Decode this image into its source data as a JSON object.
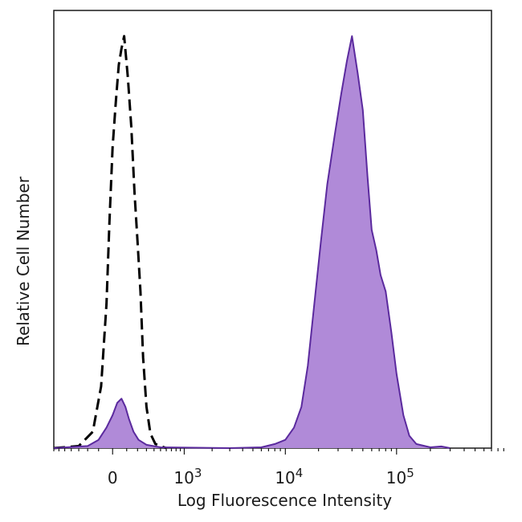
{
  "chart_data": {
    "type": "area",
    "title": "",
    "xlabel": "Log Fluorescence Intensity",
    "ylabel": "Relative Cell Number",
    "x_scale": "biexponential",
    "xlim": [
      -700,
      700000
    ],
    "ylim": [
      0,
      1
    ],
    "x_ticks": [
      {
        "value": 0,
        "base": "0",
        "exp": ""
      },
      {
        "value": 1000,
        "base": "10",
        "exp": "3"
      },
      {
        "value": 10000,
        "base": "10",
        "exp": "4"
      },
      {
        "value": 100000,
        "base": "10",
        "exp": "5"
      }
    ],
    "grid": false,
    "legend": "none",
    "series": [
      {
        "style": "dashed-outline",
        "color": "#000000",
        "points": [
          [
            -700,
            0.0
          ],
          [
            -300,
            0.005
          ],
          [
            -150,
            0.04
          ],
          [
            -80,
            0.15
          ],
          [
            -40,
            0.35
          ],
          [
            -20,
            0.55
          ],
          [
            0,
            0.73
          ],
          [
            20,
            0.84
          ],
          [
            40,
            0.93
          ],
          [
            60,
            0.97
          ],
          [
            80,
            1.0
          ],
          [
            110,
            0.9
          ],
          [
            140,
            0.78
          ],
          [
            170,
            0.62
          ],
          [
            200,
            0.5
          ],
          [
            230,
            0.38
          ],
          [
            260,
            0.22
          ],
          [
            300,
            0.1
          ],
          [
            350,
            0.035
          ],
          [
            420,
            0.01
          ],
          [
            600,
            0.0
          ]
        ]
      },
      {
        "style": "filled",
        "color": "#5b2a9e",
        "fill": "#b08ad8",
        "points": [
          [
            -700,
            0.0
          ],
          [
            -200,
            0.005
          ],
          [
            -100,
            0.02
          ],
          [
            -40,
            0.05
          ],
          [
            0,
            0.08
          ],
          [
            30,
            0.11
          ],
          [
            60,
            0.12
          ],
          [
            90,
            0.1
          ],
          [
            120,
            0.07
          ],
          [
            160,
            0.04
          ],
          [
            210,
            0.02
          ],
          [
            300,
            0.008
          ],
          [
            500,
            0.002
          ],
          [
            3000,
            0.0
          ],
          [
            6000,
            0.002
          ],
          [
            8000,
            0.01
          ],
          [
            10000,
            0.02
          ],
          [
            12000,
            0.05
          ],
          [
            14000,
            0.1
          ],
          [
            16000,
            0.2
          ],
          [
            18000,
            0.33
          ],
          [
            21000,
            0.5
          ],
          [
            24000,
            0.64
          ],
          [
            28000,
            0.76
          ],
          [
            32000,
            0.86
          ],
          [
            36000,
            0.94
          ],
          [
            40000,
            1.0
          ],
          [
            45000,
            0.91
          ],
          [
            50000,
            0.82
          ],
          [
            55000,
            0.66
          ],
          [
            60000,
            0.53
          ],
          [
            66000,
            0.48
          ],
          [
            72000,
            0.42
          ],
          [
            80000,
            0.38
          ],
          [
            90000,
            0.28
          ],
          [
            100000,
            0.18
          ],
          [
            115000,
            0.08
          ],
          [
            130000,
            0.03
          ],
          [
            150000,
            0.01
          ],
          [
            200000,
            0.002
          ],
          [
            250000,
            0.004
          ],
          [
            300000,
            0.0
          ]
        ]
      }
    ]
  }
}
